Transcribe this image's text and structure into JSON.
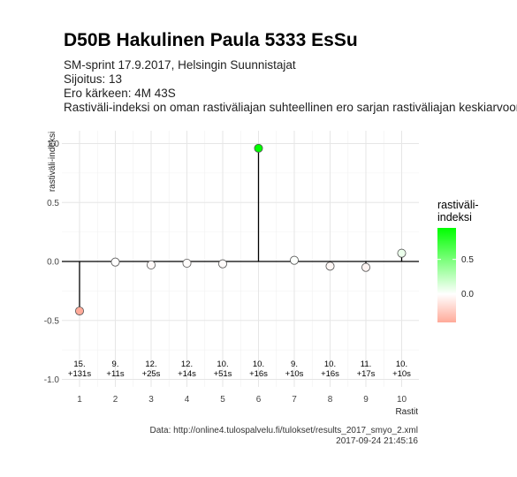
{
  "header": {
    "title": "D50B Hakulinen Paula 5333 EsSu",
    "subtitle_lines": [
      "SM-sprint 17.9.2017, Helsingin Suunnistajat",
      "Sijoitus: 13",
      "Ero kärkeen: 4M 43S",
      "Rastiväli-indeksi on oman rastiväliajan suhteellinen ero sarjan rastiväliajan keskiarvoon"
    ]
  },
  "chart_data": {
    "type": "scatter",
    "xlabel": "Rastit",
    "ylabel": "rastiväli-indeksi",
    "ylim": [
      -1.0,
      1.0
    ],
    "yticks": [
      -1.0,
      -0.5,
      0.0,
      0.5,
      1.0
    ],
    "ytick_labels": [
      "-1.0",
      "-0.5",
      "0.0",
      "0.5",
      "1.0"
    ],
    "x": [
      1,
      2,
      3,
      4,
      5,
      6,
      7,
      8,
      9,
      10
    ],
    "xtick_labels": [
      "1",
      "2",
      "3",
      "4",
      "5",
      "6",
      "7",
      "8",
      "9",
      "10"
    ],
    "values": [
      -0.42,
      -0.005,
      -0.03,
      -0.015,
      -0.02,
      0.96,
      0.01,
      -0.04,
      -0.05,
      0.07
    ],
    "annotations": [
      {
        "rank": "15.",
        "diff": "+131s"
      },
      {
        "rank": "9.",
        "diff": "+11s"
      },
      {
        "rank": "12.",
        "diff": "+25s"
      },
      {
        "rank": "12.",
        "diff": "+14s"
      },
      {
        "rank": "10.",
        "diff": "+51s"
      },
      {
        "rank": "10.",
        "diff": "+16s"
      },
      {
        "rank": "9.",
        "diff": "+10s"
      },
      {
        "rank": "10.",
        "diff": "+16s"
      },
      {
        "rank": "11.",
        "diff": "+17s"
      },
      {
        "rank": "10.",
        "diff": "+10s"
      }
    ],
    "grid": true,
    "legend": {
      "title_lines": [
        "rastiväli-",
        "indeksi"
      ],
      "position": "right",
      "ticks": [
        0.5,
        0.0
      ],
      "tick_labels": [
        "0.5",
        "0.0"
      ],
      "range": [
        -0.42,
        0.96
      ]
    },
    "colors": {
      "high": "#00ff00",
      "mid": "#ffffff",
      "low": "#ffaa99",
      "stem": "#000000",
      "grid": "#e6e6e6"
    }
  },
  "footer": {
    "source": "Data: http://online4.tulospalvelu.fi/tulokset/results_2017_smyo_2.xml",
    "timestamp": "2017-09-24 21:45:16"
  }
}
